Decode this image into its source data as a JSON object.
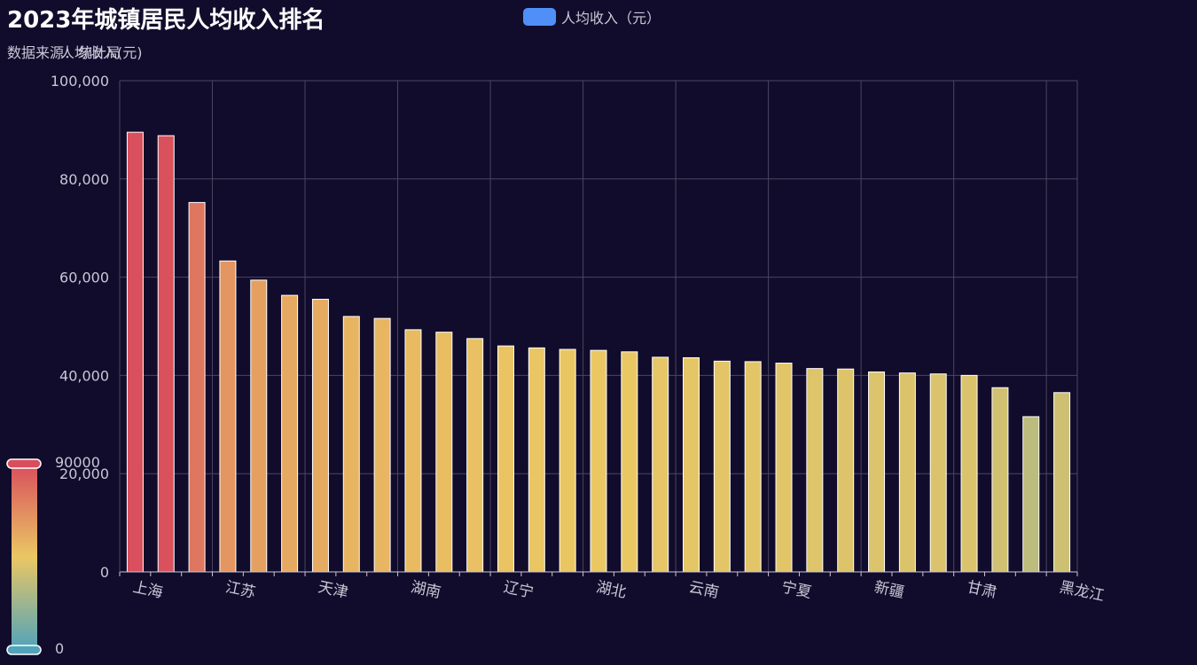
{
  "title": "2023年城镇居民人均收入排名",
  "subtitle": "数据来源：统计局",
  "unit_label": "人均收入(元)",
  "legend": {
    "label": "人均收入（元）",
    "color": "#4f8ff7"
  },
  "visual_map": {
    "max_label": "90000",
    "min_label": "0"
  },
  "chart_data": {
    "type": "bar",
    "ylim": [
      0,
      100000
    ],
    "yticks": [
      "0",
      "20,000",
      "40,000",
      "60,000",
      "80,000",
      "100,000"
    ],
    "grid": true,
    "legend_position": "top-center",
    "category_labels": [
      "上海",
      "江苏",
      "天津",
      "湖南",
      "辽宁",
      "湖北",
      "云南",
      "宁夏",
      "新疆",
      "甘肃",
      "黑龙江"
    ],
    "values": [
      89500,
      88800,
      75200,
      63300,
      59400,
      56300,
      55500,
      52000,
      51600,
      49300,
      48800,
      47500,
      46000,
      45600,
      45300,
      45100,
      44800,
      43700,
      43600,
      42900,
      42800,
      42500,
      41400,
      41300,
      40700,
      40500,
      40300,
      40000,
      37500,
      31600,
      36500
    ],
    "series": [
      {
        "name": "人均收入（元）"
      }
    ]
  }
}
